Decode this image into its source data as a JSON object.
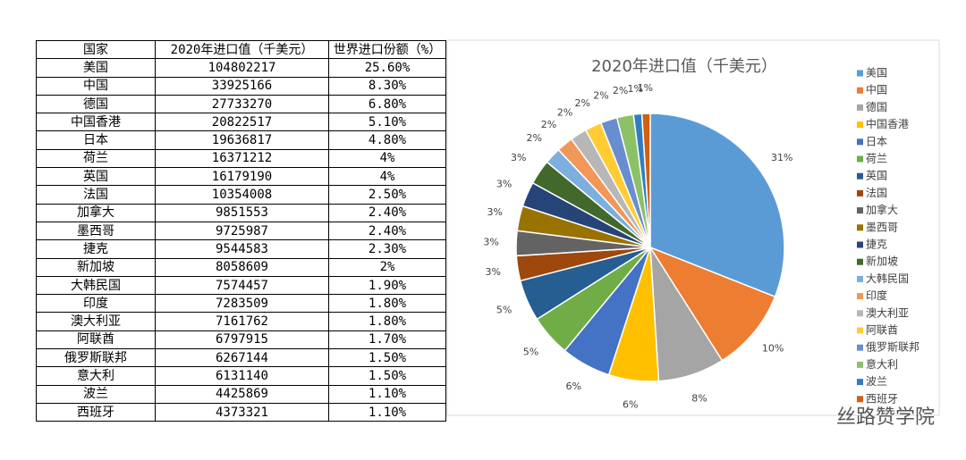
{
  "table": {
    "header": [
      "国家",
      "2020年进口值（千美元）",
      "世界进口份额（%）"
    ],
    "rows": [
      [
        "美国",
        "104802217",
        "25.60%"
      ],
      [
        "中国",
        "33925166",
        "8.30%"
      ],
      [
        "德国",
        "27733270",
        "6.80%"
      ],
      [
        "中国香港",
        "20822517",
        "5.10%"
      ],
      [
        "日本",
        "19636817",
        "4.80%"
      ],
      [
        "荷兰",
        "16371212",
        "4%"
      ],
      [
        "英国",
        "16179190",
        "4%"
      ],
      [
        "法国",
        "10354008",
        "2.50%"
      ],
      [
        "加拿大",
        "9851553",
        "2.40%"
      ],
      [
        "墨西哥",
        "9725987",
        "2.40%"
      ],
      [
        "捷克",
        "9544583",
        "2.30%"
      ],
      [
        "新加坡",
        "8058609",
        "2%"
      ],
      [
        "大韩民国",
        "7574457",
        "1.90%"
      ],
      [
        "印度",
        "7283509",
        "1.80%"
      ],
      [
        "澳大利亚",
        "7161762",
        "1.80%"
      ],
      [
        "阿联酋",
        "6797915",
        "1.70%"
      ],
      [
        "俄罗斯联邦",
        "6267144",
        "1.50%"
      ],
      [
        "意大利",
        "6131140",
        "1.50%"
      ],
      [
        "波兰",
        "4425869",
        "1.10%"
      ],
      [
        "西班牙",
        "4373321",
        "1.10%"
      ]
    ]
  },
  "chart_data": {
    "type": "pie",
    "title": "2020年进口值（千美元）",
    "categories": [
      "美国",
      "中国",
      "德国",
      "中国香港",
      "日本",
      "荷兰",
      "英国",
      "法国",
      "加拿大",
      "墨西哥",
      "捷克",
      "新加坡",
      "大韩民国",
      "印度",
      "澳大利亚",
      "阿联酋",
      "俄罗斯联邦",
      "意大利",
      "波兰",
      "西班牙"
    ],
    "values": [
      31,
      10,
      8,
      6,
      6,
      5,
      5,
      3,
      3,
      3,
      3,
      3,
      2,
      2,
      2,
      2,
      2,
      2,
      1,
      1
    ],
    "value_labels": [
      "31%",
      "10%",
      "8%",
      "6%",
      "6%",
      "5%",
      "5%",
      "3%",
      "3%",
      "3%",
      "3%",
      "3%",
      "2%",
      "2%",
      "2%",
      "2%",
      "2%",
      "2%",
      "1%",
      "1%"
    ],
    "colors": [
      "#5b9bd5",
      "#ed7d31",
      "#a5a5a5",
      "#ffc000",
      "#4472c4",
      "#70ad47",
      "#255e91",
      "#9e480e",
      "#636363",
      "#997300",
      "#264478",
      "#43682b",
      "#7cafdd",
      "#f1975a",
      "#b7b7b7",
      "#ffcd33",
      "#698ed0",
      "#8cc168",
      "#327dc2",
      "#d26012"
    ],
    "legend": "right"
  },
  "watermark": "丝路赞学院"
}
